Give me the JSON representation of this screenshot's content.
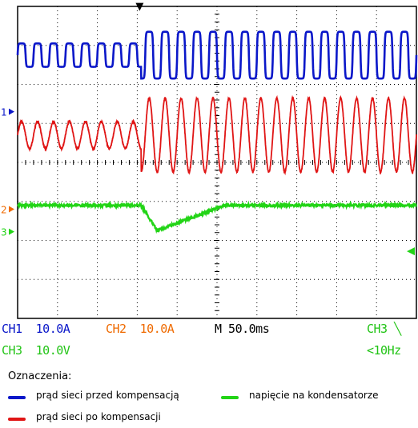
{
  "colors": {
    "ch1": "#0a17c9",
    "ch2": "#e01515",
    "ch3": "#22d416",
    "ch2_label": "#ef6a00",
    "grid": "#000000"
  },
  "markers": {
    "trigger": "▼",
    "ch1": "1",
    "ch2": "2",
    "ch3": "3",
    "trigger_level": "◀"
  },
  "chart_data": {
    "type": "line",
    "title": "",
    "xlabel": "",
    "ylabel": "",
    "timebase": "M 50.0ms",
    "divisions": {
      "x": 10,
      "y": 8
    },
    "x_range_ms": [
      0,
      500
    ],
    "event_ms": 155,
    "series": [
      {
        "name": "prąd sieci przed kompensacją",
        "channel": "CH1",
        "scale": "10.0A",
        "before": {
          "period_ms": 20,
          "amplitude_div": 0.3,
          "shape": "square-ish"
        },
        "after": {
          "period_ms": 20,
          "amplitude_div": 0.6,
          "shape": "square-ish"
        }
      },
      {
        "name": "prąd sieci po kompensacji",
        "channel": "CH2",
        "scale": "10.0A",
        "before": {
          "period_ms": 20,
          "amplitude_div": 0.35,
          "shape": "sine"
        },
        "after": {
          "period_ms": 20,
          "amplitude_div": 0.95,
          "shape": "sine"
        }
      },
      {
        "name": "napięcie na kondensatorze",
        "channel": "CH3",
        "scale": "10.0V",
        "baseline_div": 0,
        "dip_div": 0.65,
        "dip_start_ms": 155,
        "dip_min_ms": 175,
        "recovery_end_ms": 260
      }
    ]
  },
  "readout": {
    "row1": {
      "ch1": "CH1  10.0A",
      "ch2": "CH2  10.0A",
      "timebase": "M 50.0ms",
      "trigger": "CH3 ╲"
    },
    "row2": {
      "ch3": "CH3  10.0V",
      "trigger_freq": "<10Hz"
    }
  },
  "legend": {
    "title": "Oznaczenia:",
    "items": [
      {
        "label": "prąd sieci przed kompensacją"
      },
      {
        "label": "prąd sieci po kompensacji"
      },
      {
        "label": "napięcie na kondensatorze"
      }
    ]
  }
}
